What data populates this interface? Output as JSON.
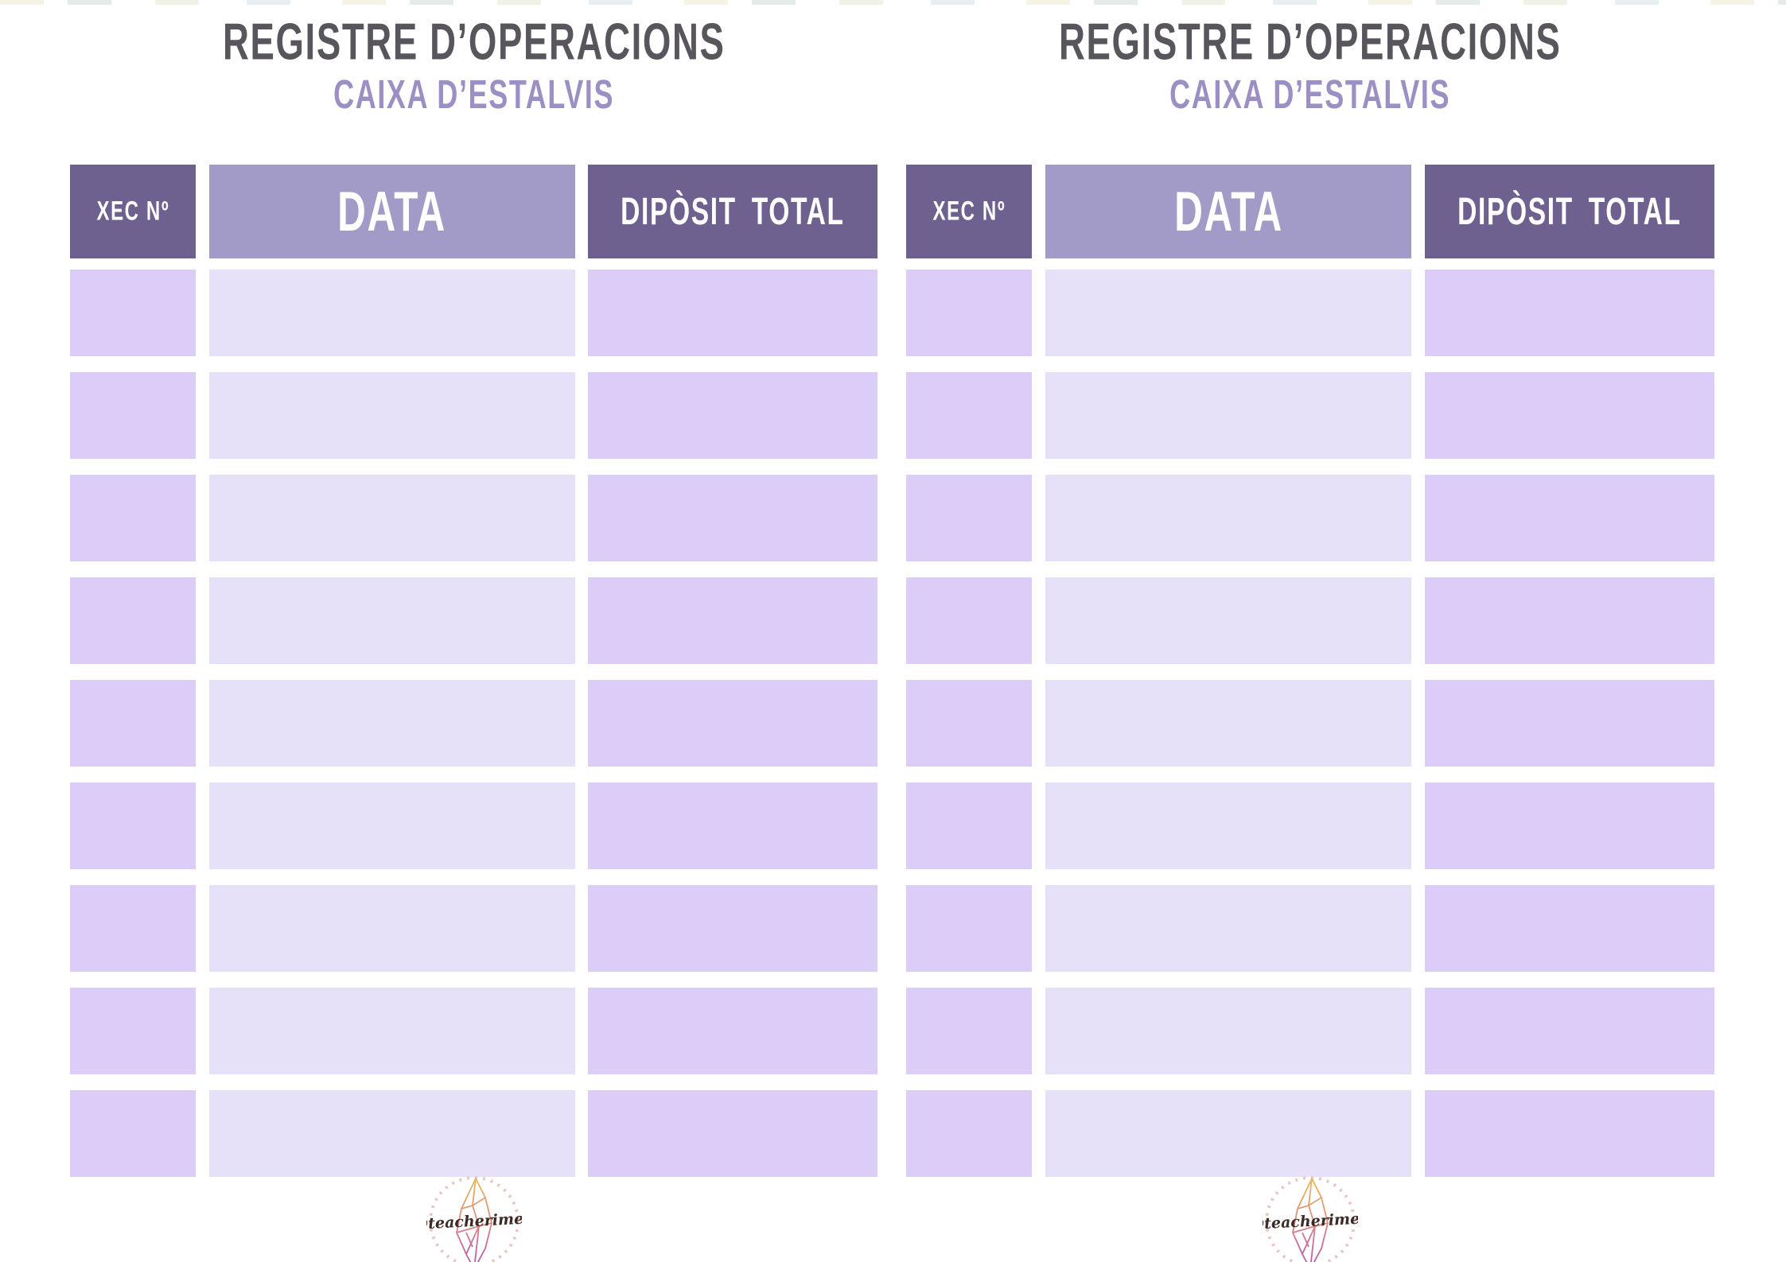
{
  "document": {
    "colors": {
      "title_color": "#58555c",
      "subtitle_color": "#9b8fc3",
      "header_dark_bg": "#6e6190",
      "header_light_bg": "#a39bc7",
      "header_text": "#ffffff",
      "cell_accent_bg": "#dbccf8",
      "cell_light_bg": "#e7e0f9",
      "page_bg": "#ffffff"
    },
    "panels": [
      {
        "title": "REGISTRE D’OPERACIONS",
        "subtitle": "CAIXA D’ESTALVIS",
        "columns": [
          {
            "id": "xec",
            "label": "XEC Nº"
          },
          {
            "id": "data",
            "label": "DATA"
          },
          {
            "id": "diposit",
            "label": "DIPÒSIT TOTAL"
          }
        ],
        "row_count": 9,
        "watermark": "@teacherimell"
      },
      {
        "title": "REGISTRE D’OPERACIONS",
        "subtitle": "CAIXA D’ESTALVIS",
        "columns": [
          {
            "id": "xec",
            "label": "XEC Nº"
          },
          {
            "id": "data",
            "label": "DATA"
          },
          {
            "id": "diposit",
            "label": "DIPÒSIT TOTAL"
          }
        ],
        "row_count": 9,
        "watermark": "@teacherimell"
      }
    ]
  }
}
